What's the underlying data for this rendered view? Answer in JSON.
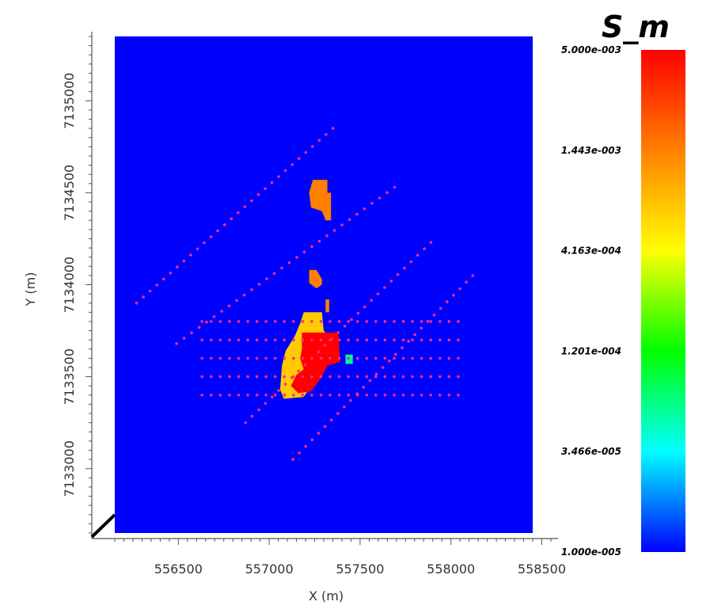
{
  "chart_data": {
    "type": "heatmap",
    "title": "S_m",
    "xlabel": "X (m)",
    "ylabel": "Y (m)",
    "xlim": [
      556150,
      558450
    ],
    "ylim": [
      7132650,
      7135350
    ],
    "x_ticks": [
      556500,
      557000,
      557500,
      558000,
      558500
    ],
    "x_tick_labels": [
      "556500",
      "557000",
      "557500",
      "558000",
      "558500"
    ],
    "y_ticks": [
      7133000,
      7133500,
      7134000,
      7134500,
      7135000
    ],
    "y_tick_labels": [
      "7133000",
      "7133500",
      "7134000",
      "7134500",
      "7135000"
    ],
    "colorbar": {
      "scale": "log",
      "min": 1e-05,
      "max": 0.005,
      "labels": [
        "5.000e-003",
        "1.443e-003",
        "4.163e-004",
        "1.201e-004",
        "3.466e-005",
        "1.000e-005"
      ],
      "colors": [
        "#ff0000",
        "#ff8000",
        "#ffff00",
        "#00ff00",
        "#00ffff",
        "#0000ff"
      ]
    },
    "background_value": 1e-05,
    "anomaly_regions": [
      {
        "name": "north-orange",
        "value": 0.001443,
        "polygon": [
          [
            557240,
            7134570
          ],
          [
            557320,
            7134570
          ],
          [
            557320,
            7134500
          ],
          [
            557340,
            7134500
          ],
          [
            557340,
            7134350
          ],
          [
            557310,
            7134350
          ],
          [
            557290,
            7134400
          ],
          [
            557230,
            7134420
          ],
          [
            557220,
            7134500
          ]
        ]
      },
      {
        "name": "mid-orange",
        "value": 0.001443,
        "polygon": [
          [
            557220,
            7134080
          ],
          [
            557260,
            7134080
          ],
          [
            557290,
            7134030
          ],
          [
            557290,
            7134000
          ],
          [
            557260,
            7133980
          ],
          [
            557220,
            7134010
          ]
        ]
      },
      {
        "name": "small-orange",
        "value": 0.001443,
        "polygon": [
          [
            557310,
            7133920
          ],
          [
            557330,
            7133920
          ],
          [
            557330,
            7133850
          ],
          [
            557310,
            7133850
          ]
        ]
      },
      {
        "name": "yellow-ring",
        "value": 0.0007,
        "polygon": [
          [
            557190,
            7133850
          ],
          [
            557290,
            7133850
          ],
          [
            557300,
            7133750
          ],
          [
            557330,
            7133720
          ],
          [
            557330,
            7133620
          ],
          [
            557300,
            7133560
          ],
          [
            557250,
            7133480
          ],
          [
            557190,
            7133390
          ],
          [
            557080,
            7133380
          ],
          [
            557060,
            7133430
          ],
          [
            557070,
            7133560
          ],
          [
            557090,
            7133640
          ],
          [
            557140,
            7133720
          ],
          [
            557170,
            7133790
          ]
        ]
      },
      {
        "name": "red-core",
        "value": 0.005,
        "polygon": [
          [
            557180,
            7133740
          ],
          [
            557380,
            7133740
          ],
          [
            557390,
            7133580
          ],
          [
            557320,
            7133560
          ],
          [
            557290,
            7133500
          ],
          [
            557230,
            7133420
          ],
          [
            557160,
            7133410
          ],
          [
            557120,
            7133450
          ],
          [
            557150,
            7133510
          ],
          [
            557190,
            7133540
          ],
          [
            557170,
            7133600
          ],
          [
            557180,
            7133650
          ]
        ]
      },
      {
        "name": "cyan-green-patch",
        "value": 6e-05,
        "polygon": [
          [
            557420,
            7133620
          ],
          [
            557460,
            7133620
          ],
          [
            557460,
            7133570
          ],
          [
            557420,
            7133570
          ]
        ]
      }
    ],
    "station_lines": [
      {
        "start": [
          556270,
          7133900
        ],
        "end": [
          557350,
          7134850
        ]
      },
      {
        "start": [
          556490,
          7133680
        ],
        "end": [
          557690,
          7134530
        ]
      },
      {
        "start": [
          556870,
          7133250
        ],
        "end": [
          557890,
          7134230
        ]
      },
      {
        "start": [
          557130,
          7133050
        ],
        "end": [
          558120,
          7134050
        ]
      },
      {
        "start": [
          556630,
          7133800
        ],
        "end": [
          558040,
          7133800
        ]
      },
      {
        "start": [
          556630,
          7133700
        ],
        "end": [
          558040,
          7133700
        ]
      },
      {
        "start": [
          556630,
          7133600
        ],
        "end": [
          558040,
          7133600
        ]
      },
      {
        "start": [
          556630,
          7133500
        ],
        "end": [
          558040,
          7133500
        ]
      },
      {
        "start": [
          556630,
          7133400
        ],
        "end": [
          558040,
          7133400
        ]
      }
    ],
    "station_color": "#ff2a8a",
    "grid": false
  }
}
